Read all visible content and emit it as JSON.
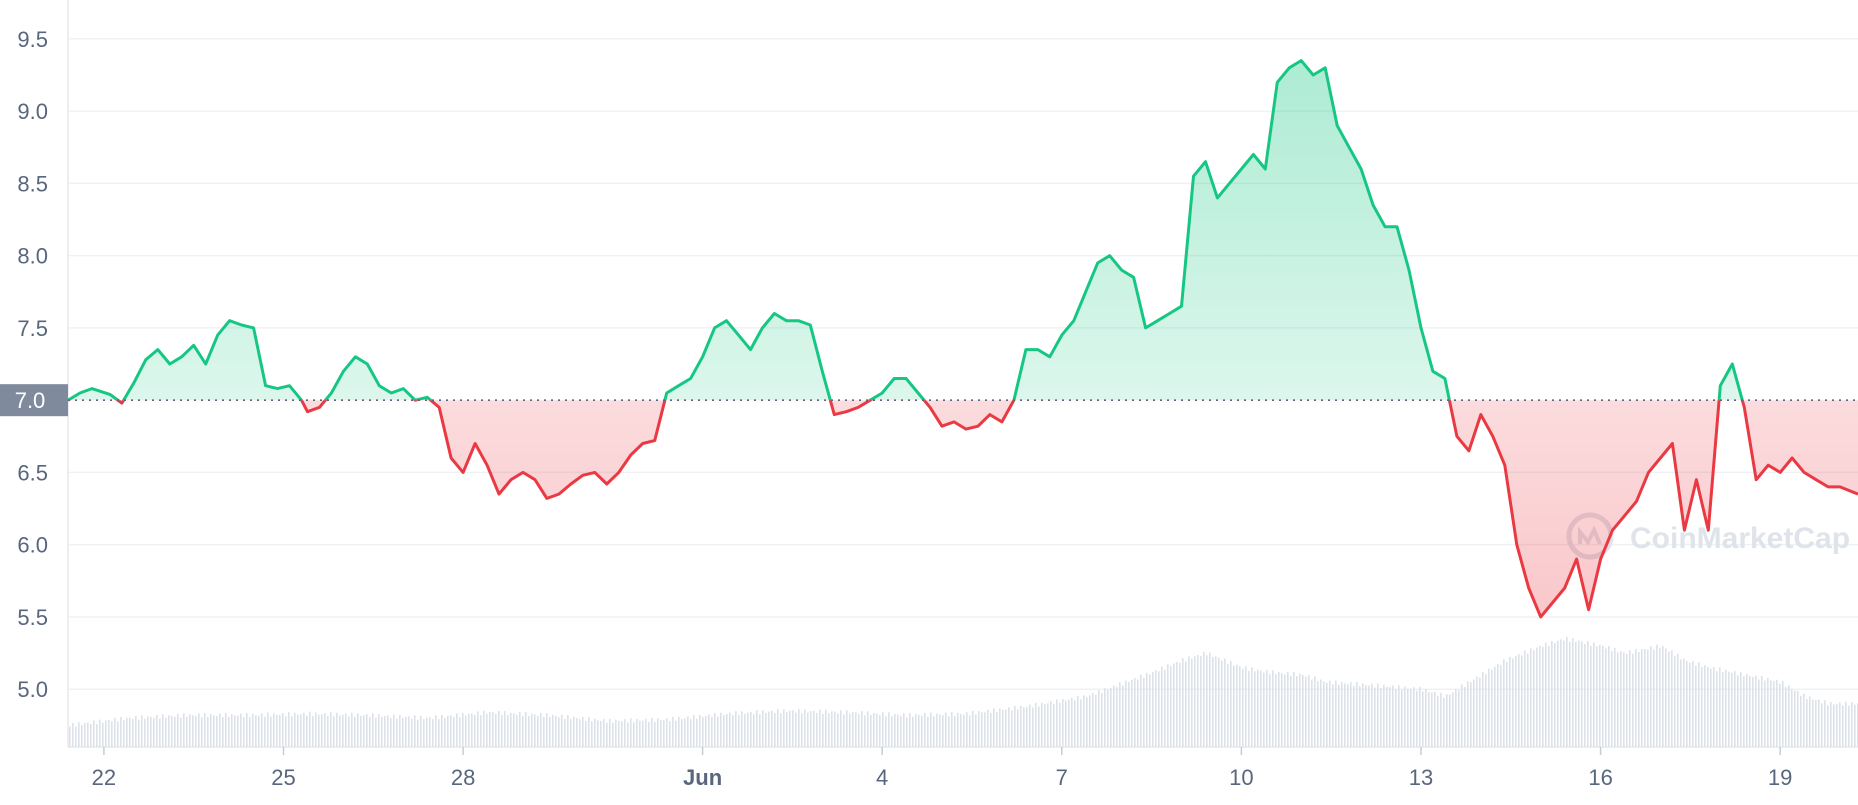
{
  "chart_data": {
    "type": "area",
    "yticks": [
      5.0,
      5.5,
      6.0,
      6.5,
      7.0,
      7.5,
      8.0,
      8.5,
      9.0,
      9.5
    ],
    "ylim": [
      4.6,
      9.7
    ],
    "xlim": [
      0,
      29.9
    ],
    "baseline": 7.0,
    "baseline_label": "7.0",
    "xticks": [
      {
        "x": 0.6,
        "label": "22",
        "bold": false
      },
      {
        "x": 3.6,
        "label": "25",
        "bold": false
      },
      {
        "x": 6.6,
        "label": "28",
        "bold": false
      },
      {
        "x": 10.6,
        "label": "Jun",
        "bold": true
      },
      {
        "x": 13.6,
        "label": "4",
        "bold": false
      },
      {
        "x": 16.6,
        "label": "7",
        "bold": false
      },
      {
        "x": 19.6,
        "label": "10",
        "bold": false
      },
      {
        "x": 22.6,
        "label": "13",
        "bold": false
      },
      {
        "x": 25.6,
        "label": "16",
        "bold": false
      },
      {
        "x": 28.6,
        "label": "19",
        "bold": false
      }
    ],
    "price": [
      [
        0.0,
        7.0
      ],
      [
        0.2,
        7.05
      ],
      [
        0.4,
        7.08
      ],
      [
        0.7,
        7.04
      ],
      [
        0.9,
        6.98
      ],
      [
        1.1,
        7.12
      ],
      [
        1.3,
        7.28
      ],
      [
        1.5,
        7.35
      ],
      [
        1.7,
        7.25
      ],
      [
        1.9,
        7.3
      ],
      [
        2.1,
        7.38
      ],
      [
        2.3,
        7.25
      ],
      [
        2.5,
        7.45
      ],
      [
        2.7,
        7.55
      ],
      [
        2.9,
        7.52
      ],
      [
        3.1,
        7.5
      ],
      [
        3.3,
        7.1
      ],
      [
        3.5,
        7.08
      ],
      [
        3.7,
        7.1
      ],
      [
        3.9,
        7.0
      ],
      [
        4.0,
        6.92
      ],
      [
        4.2,
        6.95
      ],
      [
        4.4,
        7.05
      ],
      [
        4.6,
        7.2
      ],
      [
        4.8,
        7.3
      ],
      [
        5.0,
        7.25
      ],
      [
        5.2,
        7.1
      ],
      [
        5.4,
        7.05
      ],
      [
        5.6,
        7.08
      ],
      [
        5.8,
        7.0
      ],
      [
        6.0,
        7.02
      ],
      [
        6.2,
        6.95
      ],
      [
        6.4,
        6.6
      ],
      [
        6.6,
        6.5
      ],
      [
        6.8,
        6.7
      ],
      [
        7.0,
        6.55
      ],
      [
        7.2,
        6.35
      ],
      [
        7.4,
        6.45
      ],
      [
        7.6,
        6.5
      ],
      [
        7.8,
        6.45
      ],
      [
        8.0,
        6.32
      ],
      [
        8.2,
        6.35
      ],
      [
        8.4,
        6.42
      ],
      [
        8.6,
        6.48
      ],
      [
        8.8,
        6.5
      ],
      [
        9.0,
        6.42
      ],
      [
        9.2,
        6.5
      ],
      [
        9.4,
        6.62
      ],
      [
        9.6,
        6.7
      ],
      [
        9.8,
        6.72
      ],
      [
        10.0,
        7.05
      ],
      [
        10.2,
        7.1
      ],
      [
        10.4,
        7.15
      ],
      [
        10.6,
        7.3
      ],
      [
        10.8,
        7.5
      ],
      [
        11.0,
        7.55
      ],
      [
        11.2,
        7.45
      ],
      [
        11.4,
        7.35
      ],
      [
        11.6,
        7.5
      ],
      [
        11.8,
        7.6
      ],
      [
        12.0,
        7.55
      ],
      [
        12.2,
        7.55
      ],
      [
        12.4,
        7.52
      ],
      [
        12.6,
        7.2
      ],
      [
        12.8,
        6.9
      ],
      [
        13.0,
        6.92
      ],
      [
        13.2,
        6.95
      ],
      [
        13.4,
        7.0
      ],
      [
        13.6,
        7.05
      ],
      [
        13.8,
        7.15
      ],
      [
        14.0,
        7.15
      ],
      [
        14.2,
        7.05
      ],
      [
        14.4,
        6.95
      ],
      [
        14.6,
        6.82
      ],
      [
        14.8,
        6.85
      ],
      [
        15.0,
        6.8
      ],
      [
        15.2,
        6.82
      ],
      [
        15.4,
        6.9
      ],
      [
        15.6,
        6.85
      ],
      [
        15.8,
        7.0
      ],
      [
        16.0,
        7.35
      ],
      [
        16.2,
        7.35
      ],
      [
        16.4,
        7.3
      ],
      [
        16.6,
        7.45
      ],
      [
        16.8,
        7.55
      ],
      [
        17.0,
        7.75
      ],
      [
        17.2,
        7.95
      ],
      [
        17.4,
        8.0
      ],
      [
        17.6,
        7.9
      ],
      [
        17.8,
        7.85
      ],
      [
        18.0,
        7.5
      ],
      [
        18.2,
        7.55
      ],
      [
        18.4,
        7.6
      ],
      [
        18.6,
        7.65
      ],
      [
        18.8,
        8.55
      ],
      [
        19.0,
        8.65
      ],
      [
        19.2,
        8.4
      ],
      [
        19.4,
        8.5
      ],
      [
        19.6,
        8.6
      ],
      [
        19.8,
        8.7
      ],
      [
        20.0,
        8.6
      ],
      [
        20.2,
        9.2
      ],
      [
        20.4,
        9.3
      ],
      [
        20.6,
        9.35
      ],
      [
        20.8,
        9.25
      ],
      [
        21.0,
        9.3
      ],
      [
        21.2,
        8.9
      ],
      [
        21.4,
        8.75
      ],
      [
        21.6,
        8.6
      ],
      [
        21.8,
        8.35
      ],
      [
        22.0,
        8.2
      ],
      [
        22.2,
        8.2
      ],
      [
        22.4,
        7.9
      ],
      [
        22.6,
        7.5
      ],
      [
        22.8,
        7.2
      ],
      [
        23.0,
        7.15
      ],
      [
        23.2,
        6.75
      ],
      [
        23.4,
        6.65
      ],
      [
        23.6,
        6.9
      ],
      [
        23.8,
        6.75
      ],
      [
        24.0,
        6.55
      ],
      [
        24.2,
        6.0
      ],
      [
        24.4,
        5.7
      ],
      [
        24.6,
        5.5
      ],
      [
        24.8,
        5.6
      ],
      [
        25.0,
        5.7
      ],
      [
        25.2,
        5.9
      ],
      [
        25.4,
        5.55
      ],
      [
        25.6,
        5.9
      ],
      [
        25.8,
        6.1
      ],
      [
        26.0,
        6.2
      ],
      [
        26.2,
        6.3
      ],
      [
        26.4,
        6.5
      ],
      [
        26.6,
        6.6
      ],
      [
        26.8,
        6.7
      ],
      [
        27.0,
        6.1
      ],
      [
        27.2,
        6.45
      ],
      [
        27.4,
        6.1
      ],
      [
        27.6,
        7.1
      ],
      [
        27.8,
        7.25
      ],
      [
        28.0,
        6.95
      ],
      [
        28.2,
        6.45
      ],
      [
        28.4,
        6.55
      ],
      [
        28.6,
        6.5
      ],
      [
        28.8,
        6.6
      ],
      [
        29.0,
        6.5
      ],
      [
        29.2,
        6.45
      ],
      [
        29.4,
        6.4
      ],
      [
        29.6,
        6.4
      ],
      [
        29.9,
        6.35
      ]
    ],
    "volume_profile": [
      [
        0.0,
        4.75
      ],
      [
        1.0,
        4.8
      ],
      [
        2.0,
        4.82
      ],
      [
        3.0,
        4.82
      ],
      [
        4.0,
        4.83
      ],
      [
        5.0,
        4.82
      ],
      [
        6.0,
        4.8
      ],
      [
        7.0,
        4.84
      ],
      [
        8.0,
        4.82
      ],
      [
        9.0,
        4.78
      ],
      [
        10.0,
        4.79
      ],
      [
        11.0,
        4.83
      ],
      [
        12.0,
        4.85
      ],
      [
        13.0,
        4.84
      ],
      [
        14.0,
        4.82
      ],
      [
        15.0,
        4.83
      ],
      [
        16.0,
        4.88
      ],
      [
        17.0,
        4.95
      ],
      [
        18.0,
        5.1
      ],
      [
        18.6,
        5.2
      ],
      [
        19.0,
        5.25
      ],
      [
        19.6,
        5.15
      ],
      [
        20.0,
        5.12
      ],
      [
        20.6,
        5.1
      ],
      [
        21.0,
        5.05
      ],
      [
        22.0,
        5.02
      ],
      [
        22.6,
        5.0
      ],
      [
        23.0,
        4.95
      ],
      [
        23.6,
        5.1
      ],
      [
        24.0,
        5.2
      ],
      [
        24.6,
        5.3
      ],
      [
        25.0,
        5.35
      ],
      [
        25.6,
        5.3
      ],
      [
        26.0,
        5.25
      ],
      [
        26.6,
        5.3
      ],
      [
        27.0,
        5.2
      ],
      [
        27.4,
        5.15
      ],
      [
        28.0,
        5.1
      ],
      [
        28.6,
        5.05
      ],
      [
        29.0,
        4.95
      ],
      [
        29.4,
        4.9
      ],
      [
        29.9,
        4.9
      ]
    ],
    "colors": {
      "up": "#16c784",
      "down": "#ea3943",
      "grid": "#eff2f5",
      "axis_text": "#58667e",
      "baseline_box": "#808a9d",
      "volume": "#dde1e8"
    },
    "watermark": "CoinMarketCap"
  }
}
